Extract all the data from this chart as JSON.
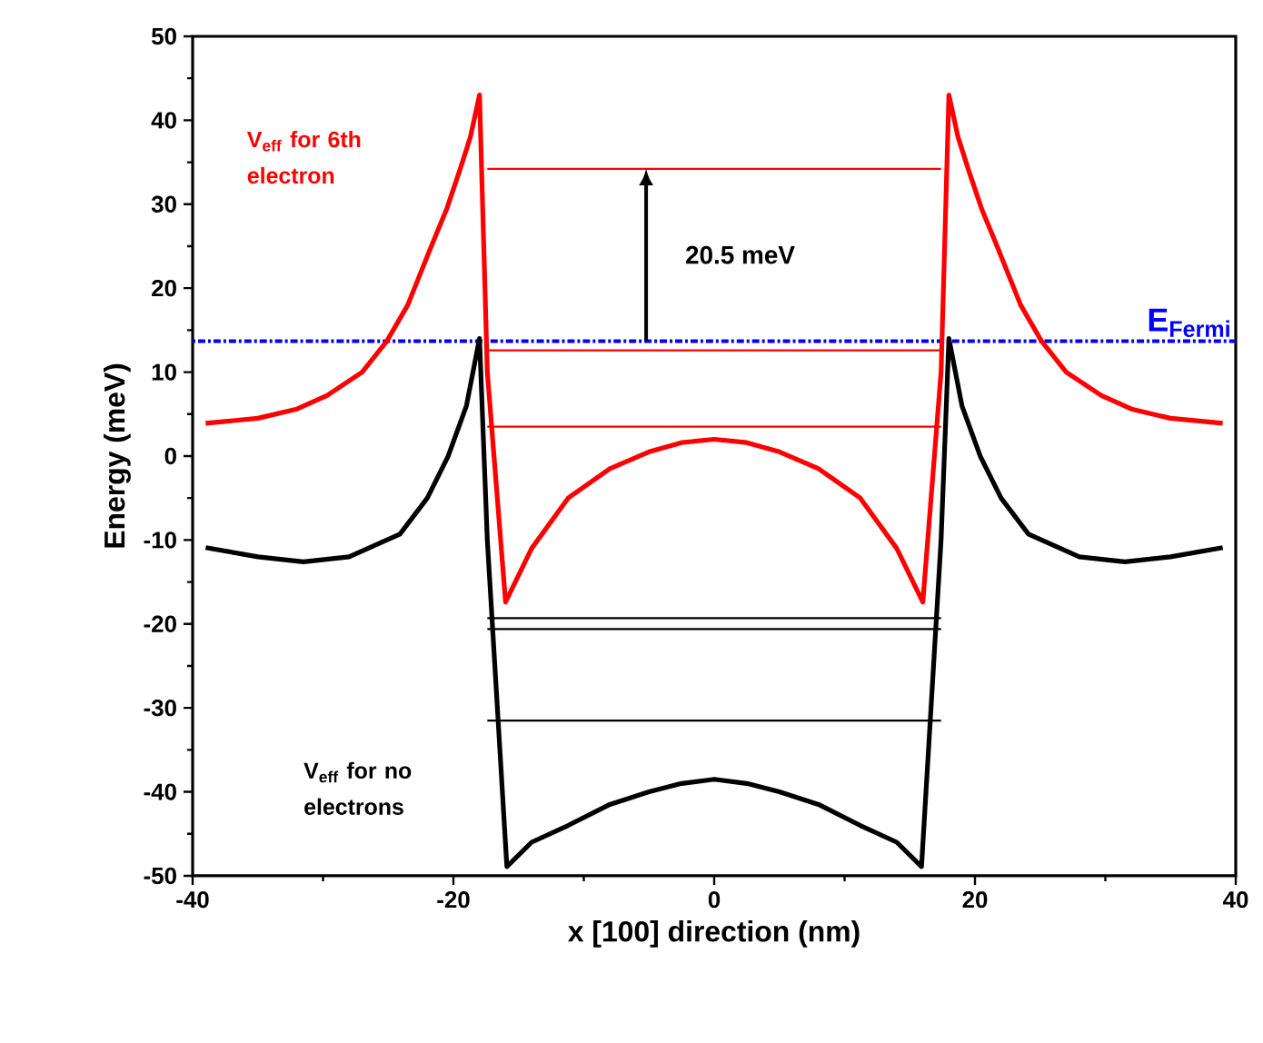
{
  "chart_data": {
    "type": "line",
    "xlabel": "x [100] direction (nm)",
    "ylabel": "Energy (meV)",
    "xlim": [
      -40,
      40
    ],
    "xticks": [
      -40,
      -20,
      0,
      20,
      40
    ],
    "ylim": [
      -50,
      50
    ],
    "yticks": [
      -50,
      -40,
      -30,
      -20,
      -10,
      0,
      10,
      20,
      30,
      40,
      50
    ],
    "grid": false,
    "marker": "none",
    "line_style": "solid",
    "series": [
      {
        "name": "V$_{eff}$ for 6th electron",
        "color": "#ff0000",
        "x": [
          -39,
          -35,
          -32,
          -29.7,
          -27,
          -25.1,
          -23.5,
          -21.8,
          -20.5,
          -19.5,
          -18.7,
          -18,
          -17.4,
          -16,
          -14,
          -11.2,
          -8,
          -5,
          -2.5,
          0,
          2.5,
          5,
          8,
          11.2,
          14,
          16,
          17.4,
          18,
          18.7,
          19.5,
          20.5,
          21.8,
          23.5,
          25.1,
          27,
          29.7,
          32,
          35,
          39
        ],
        "values": [
          3.9,
          4.5,
          5.6,
          7.2,
          10,
          13.7,
          18,
          24.6,
          29.5,
          34.1,
          38,
          43,
          10,
          -17.4,
          -11,
          -5,
          -1.5,
          0.5,
          1.6,
          2,
          1.6,
          0.5,
          -1.5,
          -5,
          -11,
          -17.4,
          10,
          43,
          38,
          34.1,
          29.5,
          24.6,
          18,
          13.7,
          10,
          7.2,
          5.6,
          4.5,
          3.9
        ]
      },
      {
        "name": "V$_{eff}$ for no electrons",
        "color": "#000000",
        "x": [
          -39,
          -35,
          -31.5,
          -28,
          -24.1,
          -22,
          -20.4,
          -19,
          -18,
          -17.4,
          -15.9,
          -14,
          -11.2,
          -8,
          -5,
          -2.5,
          0,
          2.5,
          5,
          8,
          11.2,
          14,
          15.9,
          17.4,
          18,
          19,
          20.4,
          22,
          24.1,
          28,
          31.5,
          35,
          39
        ],
        "values": [
          -10.9,
          -12,
          -12.6,
          -12,
          -9.3,
          -5,
          0,
          6,
          14,
          -10,
          -48.9,
          -46,
          -44,
          -41.5,
          -40,
          -39,
          -38.5,
          -39,
          -40,
          -41.5,
          -44,
          -46,
          -48.9,
          -10,
          14,
          6,
          0,
          -5,
          -9.3,
          -12,
          -12.6,
          -12,
          -10.9
        ]
      },
      {
        "color": "#ff0000",
        "x": [
          -17.4,
          17.4
        ],
        "values": [
          34.2,
          34.2
        ]
      },
      {
        "color": "#ff0000",
        "x": [
          -17.4,
          17.4
        ],
        "values": [
          12.6,
          12.6
        ]
      },
      {
        "color": "#ff0000",
        "x": [
          -17.4,
          17.4
        ],
        "values": [
          3.5,
          3.5
        ]
      },
      {
        "color": "#000000",
        "x": [
          -17.4,
          17.4
        ],
        "values": [
          -19.3,
          -19.3
        ]
      },
      {
        "color": "#000000",
        "x": [
          -17.4,
          17.4
        ],
        "values": [
          -20.6,
          -20.6
        ]
      },
      {
        "color": "#000000",
        "x": [
          -17.4,
          17.4
        ],
        "values": [
          -31.5,
          -31.5
        ]
      }
    ],
    "ref_lines": [
      {
        "axis": "y",
        "value": 13.7,
        "label": "E$_{Fermi}$",
        "color": "#0000ff",
        "line_style": "dotted"
      }
    ],
    "annotations": [
      "20.5 meV"
    ]
  }
}
